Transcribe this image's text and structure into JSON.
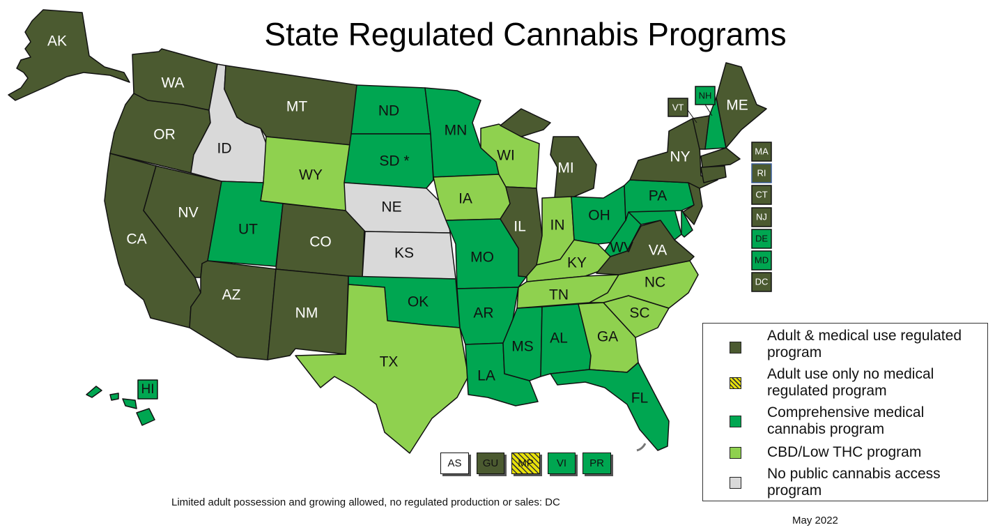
{
  "title": "State Regulated Cannabis Programs",
  "colors": {
    "adult_medical": "#4b5a30",
    "adult_only": "#e8e10a",
    "comprehensive_medical": "#00a651",
    "cbd_low_thc": "#8fd14f",
    "none": "#d9d9d9",
    "border": "#111111"
  },
  "states": {
    "AK": "AK",
    "WA": "WA",
    "OR": "OR",
    "CA": "CA",
    "NV": "NV",
    "ID": "ID",
    "MT": "MT",
    "WY": "WY",
    "UT": "UT",
    "AZ": "AZ",
    "CO": "CO",
    "NM": "NM",
    "ND": "ND",
    "SD": "SD *",
    "NE": "NE",
    "KS": "KS",
    "OK": "OK",
    "TX": "TX",
    "MN": "MN",
    "IA": "IA",
    "MO": "MO",
    "AR": "AR",
    "LA": "LA",
    "WI": "WI",
    "IL": "IL",
    "MI": "MI",
    "IN": "IN",
    "OH": "OH",
    "KY": "KY",
    "TN": "TN",
    "MS": "MS",
    "AL": "AL",
    "GA": "GA",
    "FL": "FL",
    "SC": "SC",
    "NC": "NC",
    "VA": "VA",
    "WV": "WV",
    "PA": "PA",
    "NY": "NY",
    "ME": "ME",
    "VT": "VT",
    "NH": "NH",
    "HI": "HI"
  },
  "northeast_boxes": [
    "MA",
    "RI",
    "CT",
    "NJ",
    "DE",
    "MD",
    "DC"
  ],
  "territories": [
    {
      "label": "AS",
      "category": "none_white"
    },
    {
      "label": "GU",
      "category": "adult_medical"
    },
    {
      "label": "MP",
      "category": "adult_only"
    },
    {
      "label": "VI",
      "category": "comprehensive_medical"
    },
    {
      "label": "PR",
      "category": "comprehensive_medical"
    }
  ],
  "legend": [
    {
      "category": "adult_medical",
      "text": "Adult & medical use regulated program"
    },
    {
      "category": "adult_only",
      "text": "Adult use only no medical regulated program"
    },
    {
      "category": "comprehensive_medical",
      "text": "Comprehensive medical cannabis program"
    },
    {
      "category": "cbd_low_thc",
      "text": "CBD/Low THC program"
    },
    {
      "category": "none",
      "text": "No public cannabis access program"
    }
  ],
  "footnote": "Limited adult possession and growing allowed, no regulated production or sales: DC",
  "date": "May 2022"
}
